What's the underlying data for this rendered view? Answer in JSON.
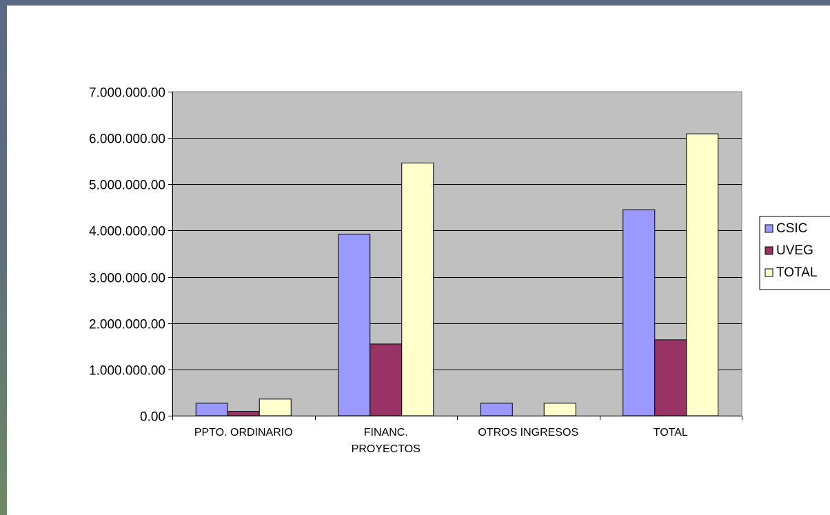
{
  "chart_data": {
    "type": "bar",
    "categories": [
      [
        "PPTO. ORDINARIO"
      ],
      [
        "FINANC.",
        "PROYECTOS"
      ],
      [
        "OTROS INGRESOS"
      ],
      [
        "TOTAL"
      ]
    ],
    "series": [
      {
        "name": "CSIC",
        "color": "#9999ff",
        "values": [
          270000,
          3920000,
          270000,
          4450000
        ]
      },
      {
        "name": "UVEG",
        "color": "#993366",
        "values": [
          95000,
          1550000,
          0,
          1640000
        ]
      },
      {
        "name": "TOTAL",
        "color": "#ffffcc",
        "values": [
          360000,
          5460000,
          270000,
          6090000
        ]
      }
    ],
    "ylim": [
      0,
      7000000
    ],
    "yticks": [
      {
        "value": 0,
        "label": "0.00"
      },
      {
        "value": 1000000,
        "label": "1.000.000.00"
      },
      {
        "value": 2000000,
        "label": "2.000.000.00"
      },
      {
        "value": 3000000,
        "label": "3.000.000.00"
      },
      {
        "value": 4000000,
        "label": "4.000.000.00"
      },
      {
        "value": 5000000,
        "label": "5.000.000.00"
      },
      {
        "value": 6000000,
        "label": "6.000.000.00"
      },
      {
        "value": 7000000,
        "label": "7.000.000.00"
      }
    ],
    "plot_background": "#c0c0c0",
    "grid": true,
    "legend_position": "right"
  }
}
